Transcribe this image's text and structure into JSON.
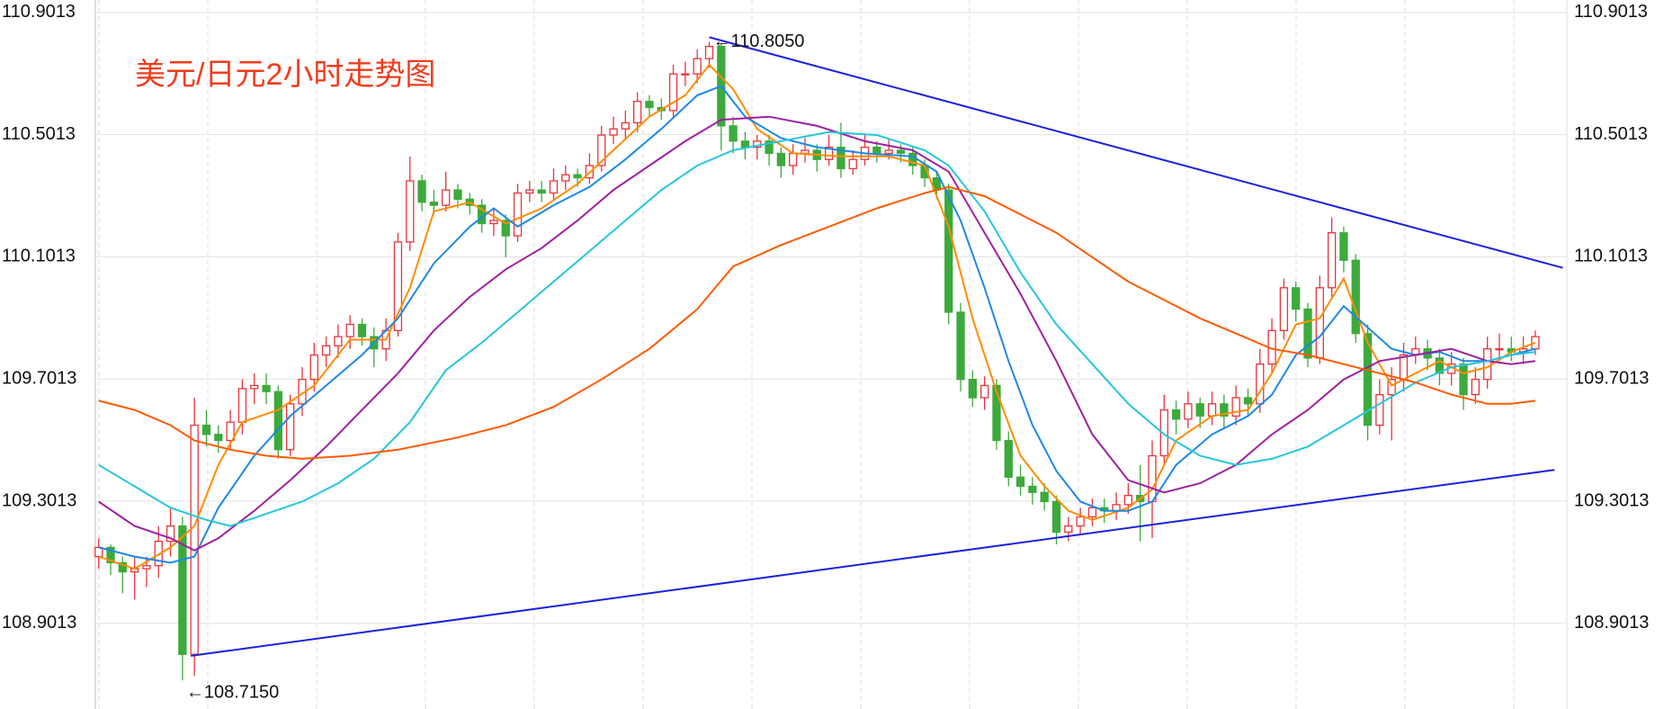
{
  "chart_data": {
    "type": "candlestick",
    "title": "美元/日元2小时走势图",
    "title_color": "#f03c1e",
    "ylim": [
      108.621,
      110.942
    ],
    "yticks": [
      108.9013,
      109.3013,
      109.7013,
      110.1013,
      110.5013,
      110.9013
    ],
    "grid": true,
    "up_color": "#e8343a",
    "down_color": "#3caa3c",
    "candles": [
      [
        109.12,
        109.18,
        109.08,
        109.15
      ],
      [
        109.15,
        109.16,
        109.06,
        109.1
      ],
      [
        109.1,
        109.12,
        109.0,
        109.07
      ],
      [
        109.07,
        109.12,
        108.98,
        109.08
      ],
      [
        109.08,
        109.12,
        109.02,
        109.09
      ],
      [
        109.09,
        109.22,
        109.05,
        109.17
      ],
      [
        109.17,
        109.28,
        109.12,
        109.22
      ],
      [
        109.22,
        109.25,
        108.715,
        108.8
      ],
      [
        108.8,
        109.64,
        108.73,
        109.55
      ],
      [
        109.55,
        109.6,
        109.48,
        109.52
      ],
      [
        109.52,
        109.55,
        109.46,
        109.5
      ],
      [
        109.5,
        109.6,
        109.47,
        109.56
      ],
      [
        109.56,
        109.7,
        109.52,
        109.67
      ],
      [
        109.67,
        109.72,
        109.62,
        109.68
      ],
      [
        109.68,
        109.72,
        109.62,
        109.66
      ],
      [
        109.66,
        109.68,
        109.44,
        109.47
      ],
      [
        109.47,
        109.65,
        109.45,
        109.62
      ],
      [
        109.62,
        109.74,
        109.58,
        109.7
      ],
      [
        109.7,
        109.82,
        109.66,
        109.78
      ],
      [
        109.78,
        109.84,
        109.74,
        109.81
      ],
      [
        109.81,
        109.88,
        109.77,
        109.84
      ],
      [
        109.84,
        109.91,
        109.8,
        109.88
      ],
      [
        109.88,
        109.9,
        109.81,
        109.84
      ],
      [
        109.84,
        109.87,
        109.74,
        109.8
      ],
      [
        109.8,
        109.9,
        109.76,
        109.86
      ],
      [
        109.86,
        110.18,
        109.84,
        110.15
      ],
      [
        110.15,
        110.43,
        110.12,
        110.35
      ],
      [
        110.35,
        110.37,
        110.25,
        110.28
      ],
      [
        110.28,
        110.32,
        110.24,
        110.27
      ],
      [
        110.27,
        110.38,
        110.25,
        110.32
      ],
      [
        110.32,
        110.34,
        110.26,
        110.29
      ],
      [
        110.29,
        110.31,
        110.24,
        110.27
      ],
      [
        110.27,
        110.29,
        110.18,
        110.21
      ],
      [
        110.21,
        110.26,
        110.17,
        110.22
      ],
      [
        110.22,
        110.24,
        110.1,
        110.17
      ],
      [
        110.17,
        110.34,
        110.15,
        110.31
      ],
      [
        110.31,
        110.35,
        110.28,
        110.32
      ],
      [
        110.32,
        110.35,
        110.28,
        110.31
      ],
      [
        110.31,
        110.39,
        110.29,
        110.35
      ],
      [
        110.35,
        110.4,
        110.32,
        110.37
      ],
      [
        110.37,
        110.39,
        110.33,
        110.36
      ],
      [
        110.36,
        110.44,
        110.34,
        110.4
      ],
      [
        110.4,
        110.53,
        110.38,
        110.5
      ],
      [
        110.5,
        110.56,
        110.47,
        110.52
      ],
      [
        110.52,
        110.58,
        110.49,
        110.54
      ],
      [
        110.54,
        110.64,
        110.51,
        110.61
      ],
      [
        110.61,
        110.63,
        110.56,
        110.59
      ],
      [
        110.59,
        110.62,
        110.55,
        110.58
      ],
      [
        110.58,
        110.73,
        110.56,
        110.7
      ],
      [
        110.7,
        110.74,
        110.66,
        110.7
      ],
      [
        110.7,
        110.78,
        110.67,
        110.75
      ],
      [
        110.75,
        110.805,
        110.72,
        110.79
      ],
      [
        110.79,
        110.8,
        110.45,
        110.53
      ],
      [
        110.53,
        110.56,
        110.44,
        110.48
      ],
      [
        110.48,
        110.51,
        110.42,
        110.46
      ],
      [
        110.46,
        110.5,
        110.42,
        110.48
      ],
      [
        110.48,
        110.5,
        110.4,
        110.44
      ],
      [
        110.44,
        110.46,
        110.36,
        110.4
      ],
      [
        110.4,
        110.47,
        110.37,
        110.44
      ],
      [
        110.44,
        110.49,
        110.41,
        110.45
      ],
      [
        110.45,
        110.47,
        110.38,
        110.42
      ],
      [
        110.42,
        110.5,
        110.4,
        110.46
      ],
      [
        110.46,
        110.54,
        110.36,
        110.39
      ],
      [
        110.39,
        110.45,
        110.37,
        110.42
      ],
      [
        110.42,
        110.5,
        110.4,
        110.46
      ],
      [
        110.46,
        110.48,
        110.41,
        110.44
      ],
      [
        110.44,
        110.49,
        110.42,
        110.45
      ],
      [
        110.45,
        110.47,
        110.41,
        110.44
      ],
      [
        110.44,
        110.46,
        110.37,
        110.4
      ],
      [
        110.4,
        110.42,
        110.33,
        110.36
      ],
      [
        110.36,
        110.38,
        110.29,
        110.32
      ],
      [
        110.32,
        110.34,
        109.88,
        109.92
      ],
      [
        109.92,
        109.95,
        109.66,
        109.7
      ],
      [
        109.7,
        109.73,
        109.61,
        109.64
      ],
      [
        109.64,
        109.71,
        109.6,
        109.68
      ],
      [
        109.68,
        109.7,
        109.47,
        109.5
      ],
      [
        109.5,
        109.53,
        109.35,
        109.38
      ],
      [
        109.38,
        109.42,
        109.32,
        109.35
      ],
      [
        109.35,
        109.38,
        109.29,
        109.33
      ],
      [
        109.33,
        109.36,
        109.27,
        109.3
      ],
      [
        109.3,
        109.32,
        109.16,
        109.2
      ],
      [
        109.2,
        109.25,
        109.17,
        109.22
      ],
      [
        109.22,
        109.28,
        109.19,
        109.25
      ],
      [
        109.25,
        109.31,
        109.22,
        109.28
      ],
      [
        109.28,
        109.31,
        109.23,
        109.27
      ],
      [
        109.27,
        109.33,
        109.24,
        109.29
      ],
      [
        109.29,
        109.36,
        109.26,
        109.32
      ],
      [
        109.32,
        109.42,
        109.17,
        109.3
      ],
      [
        109.3,
        109.5,
        109.18,
        109.45
      ],
      [
        109.45,
        109.65,
        109.42,
        109.6
      ],
      [
        109.6,
        109.63,
        109.52,
        109.57
      ],
      [
        109.57,
        109.66,
        109.54,
        109.62
      ],
      [
        109.62,
        109.64,
        109.54,
        109.58
      ],
      [
        109.58,
        109.66,
        109.55,
        109.62
      ],
      [
        109.62,
        109.65,
        109.54,
        109.58
      ],
      [
        109.58,
        109.68,
        109.55,
        109.64
      ],
      [
        109.64,
        109.67,
        109.58,
        109.62
      ],
      [
        109.62,
        109.8,
        109.59,
        109.75
      ],
      [
        109.75,
        109.9,
        109.72,
        109.86
      ],
      [
        109.86,
        110.03,
        109.83,
        110.0
      ],
      [
        110.0,
        110.02,
        109.89,
        109.93
      ],
      [
        109.93,
        109.95,
        109.74,
        109.77
      ],
      [
        109.77,
        110.04,
        109.75,
        110.0
      ],
      [
        110.0,
        110.23,
        109.97,
        110.18
      ],
      [
        110.18,
        110.2,
        110.05,
        110.09
      ],
      [
        110.09,
        110.11,
        109.82,
        109.85
      ],
      [
        109.85,
        109.88,
        109.5,
        109.55
      ],
      [
        109.55,
        109.7,
        109.52,
        109.65
      ],
      [
        109.65,
        109.74,
        109.5,
        109.7
      ],
      [
        109.7,
        109.82,
        109.66,
        109.78
      ],
      [
        109.78,
        109.84,
        109.75,
        109.8
      ],
      [
        109.8,
        109.83,
        109.73,
        109.77
      ],
      [
        109.77,
        109.8,
        109.68,
        109.72
      ],
      [
        109.72,
        109.79,
        109.68,
        109.75
      ],
      [
        109.75,
        109.77,
        109.6,
        109.65
      ],
      [
        109.65,
        109.74,
        109.62,
        109.7
      ],
      [
        109.7,
        109.84,
        109.67,
        109.8
      ],
      [
        109.8,
        109.85,
        109.76,
        109.8
      ],
      [
        109.8,
        109.84,
        109.76,
        109.79
      ],
      [
        109.79,
        109.84,
        109.75,
        109.8
      ],
      [
        109.8,
        109.86,
        109.78,
        109.84
      ]
    ],
    "series": [
      {
        "color": "#ff8c00",
        "x": [
          0,
          3,
          6,
          8,
          10,
          12,
          15,
          18,
          21,
          24,
          26,
          28,
          31,
          34,
          37,
          40,
          43,
          46,
          49,
          51,
          53,
          55,
          58,
          62,
          66,
          69,
          71,
          73,
          75,
          77,
          79,
          81,
          83,
          86,
          88,
          90,
          93,
          96,
          98,
          100,
          102,
          104,
          106,
          108,
          110,
          112,
          114,
          116,
          118,
          120
        ],
        "values": [
          109.12,
          109.08,
          109.15,
          109.22,
          109.42,
          109.56,
          109.6,
          109.68,
          109.83,
          109.83,
          110.0,
          110.25,
          110.28,
          110.21,
          110.26,
          110.34,
          110.45,
          110.56,
          110.63,
          110.73,
          110.65,
          110.52,
          110.44,
          110.43,
          110.43,
          110.4,
          110.2,
          109.9,
          109.66,
          109.45,
          109.35,
          109.27,
          109.24,
          109.28,
          109.34,
          109.5,
          109.58,
          109.6,
          109.72,
          109.88,
          109.9,
          110.03,
          109.82,
          109.68,
          109.72,
          109.76,
          109.72,
          109.74,
          109.79,
          109.82
        ]
      },
      {
        "color": "#1e88e5",
        "x": [
          0,
          3,
          6,
          8,
          10,
          13,
          16,
          19,
          22,
          25,
          28,
          31,
          33,
          35,
          38,
          41,
          44,
          47,
          50,
          52,
          54,
          57,
          60,
          64,
          68,
          70,
          72,
          74,
          76,
          78,
          80,
          82,
          84,
          86,
          88,
          90,
          93,
          96,
          98,
          100,
          102,
          104,
          106,
          108,
          110,
          112,
          114,
          116,
          118,
          120
        ],
        "values": [
          109.15,
          109.12,
          109.1,
          109.12,
          109.28,
          109.45,
          109.58,
          109.68,
          109.78,
          109.9,
          110.08,
          110.2,
          110.26,
          110.2,
          110.27,
          110.33,
          110.42,
          110.52,
          110.63,
          110.66,
          110.56,
          110.49,
          110.46,
          110.44,
          110.43,
          110.38,
          110.22,
          110.0,
          109.76,
          109.55,
          109.4,
          109.3,
          109.27,
          109.27,
          109.3,
          109.42,
          109.52,
          109.58,
          109.65,
          109.78,
          109.84,
          109.94,
          109.87,
          109.8,
          109.78,
          109.79,
          109.76,
          109.76,
          109.78,
          109.8
        ]
      },
      {
        "color": "#a020a0",
        "x": [
          0,
          3,
          6,
          8,
          10,
          13,
          16,
          19,
          22,
          25,
          28,
          31,
          34,
          37,
          40,
          43,
          46,
          49,
          52,
          56,
          60,
          64,
          68,
          71,
          74,
          77,
          80,
          83,
          86,
          89,
          92,
          95,
          98,
          101,
          104,
          107,
          110,
          113,
          116,
          118,
          120
        ],
        "values": [
          109.3,
          109.22,
          109.18,
          109.14,
          109.18,
          109.27,
          109.37,
          109.48,
          109.6,
          109.72,
          109.86,
          109.97,
          110.06,
          110.13,
          110.22,
          110.32,
          110.4,
          110.48,
          110.55,
          110.56,
          110.53,
          110.48,
          110.45,
          110.38,
          110.18,
          109.98,
          109.76,
          109.52,
          109.37,
          109.33,
          109.36,
          109.42,
          109.52,
          109.6,
          109.7,
          109.76,
          109.78,
          109.8,
          109.76,
          109.75,
          109.76
        ]
      },
      {
        "color": "#26c6da",
        "x": [
          0,
          3,
          6,
          9,
          11,
          14,
          17,
          20,
          23,
          26,
          29,
          32,
          35,
          38,
          41,
          44,
          47,
          50,
          53,
          57,
          61,
          65,
          69,
          71,
          74,
          77,
          80,
          83,
          86,
          89,
          92,
          95,
          98,
          101,
          104,
          107,
          110,
          113,
          116,
          118,
          120
        ],
        "values": [
          109.42,
          109.35,
          109.28,
          109.24,
          109.22,
          109.26,
          109.3,
          109.36,
          109.44,
          109.56,
          109.73,
          109.82,
          109.92,
          110.02,
          110.12,
          110.22,
          110.32,
          110.4,
          110.45,
          110.48,
          110.51,
          110.5,
          110.45,
          110.4,
          110.25,
          110.05,
          109.88,
          109.75,
          109.62,
          109.52,
          109.45,
          109.42,
          109.44,
          109.48,
          109.55,
          109.62,
          109.69,
          109.74,
          109.76,
          109.78,
          109.79
        ]
      },
      {
        "color": "#ff5a00",
        "x": [
          0,
          3,
          6,
          8,
          11,
          14,
          17,
          21,
          25,
          30,
          34,
          38,
          42,
          46,
          50,
          53,
          57,
          61,
          65,
          69,
          71,
          74,
          77,
          80,
          83,
          86,
          89,
          92,
          95,
          98,
          101,
          104,
          107,
          110,
          113,
          116,
          118,
          120
        ],
        "values": [
          109.63,
          109.6,
          109.55,
          109.5,
          109.47,
          109.45,
          109.44,
          109.45,
          109.47,
          109.51,
          109.55,
          109.61,
          109.7,
          109.8,
          109.93,
          110.07,
          110.14,
          110.2,
          110.26,
          110.31,
          110.33,
          110.3,
          110.24,
          110.18,
          110.1,
          110.02,
          109.96,
          109.9,
          109.85,
          109.8,
          109.78,
          109.75,
          109.72,
          109.69,
          109.65,
          109.62,
          109.62,
          109.63
        ]
      }
    ],
    "trendlines": [
      {
        "color": "#1a22dc",
        "x": [
          51,
          122.3
        ],
        "values": [
          110.82,
          110.065
        ]
      },
      {
        "color": "#1a22dc",
        "x": [
          7.7,
          121.6
        ],
        "values": [
          108.795,
          109.404
        ]
      }
    ],
    "annotations": [
      {
        "text": "←110.8050",
        "value": 110.805,
        "x": 51
      },
      {
        "text": "←108.7150",
        "value": 108.715,
        "x": 7
      }
    ]
  }
}
